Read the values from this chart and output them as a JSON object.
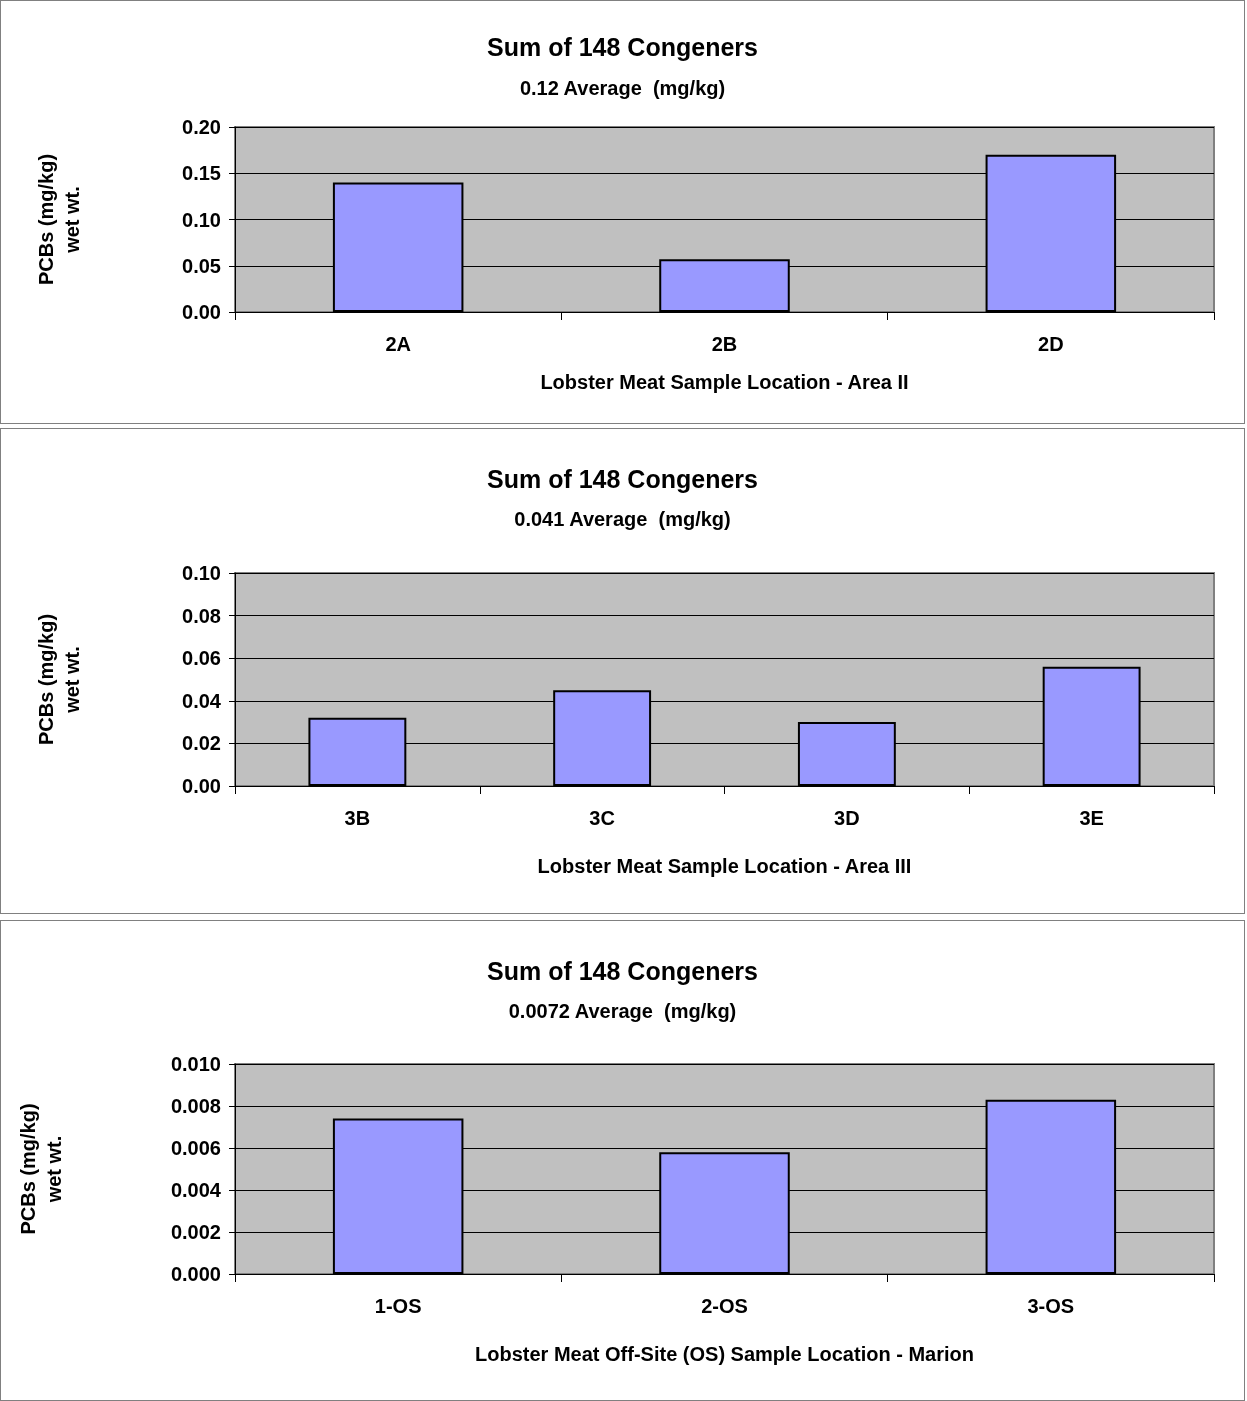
{
  "chart_data": [
    {
      "type": "bar",
      "title": "Sum of 148 Congeners",
      "subtitle": "0.12 Average  (mg/kg)",
      "xlabel": "Lobster Meat Sample Location - Area II",
      "ylabel": "PCBs (mg/kg)\nwet wt.",
      "categories": [
        "2A",
        "2B",
        "2D"
      ],
      "values": [
        0.14,
        0.057,
        0.17
      ],
      "color": "#9999ff",
      "ylim": [
        0,
        0.2
      ],
      "yticks": [
        {
          "value": 0,
          "label": "0.00"
        },
        {
          "value": 0.05,
          "label": "0.05"
        },
        {
          "value": 0.1,
          "label": "0.10"
        },
        {
          "value": 0.15,
          "label": "0.15"
        },
        {
          "value": 0.2,
          "label": "0.20"
        }
      ],
      "grid": "y"
    },
    {
      "type": "bar",
      "title": "Sum of 148 Congeners",
      "subtitle": "0.041 Average  (mg/kg)",
      "xlabel": "Lobster Meat Sample Location - Area III",
      "ylabel": "PCBs (mg/kg)\nwet wt.",
      "categories": [
        "3B",
        "3C",
        "3D",
        "3E"
      ],
      "values": [
        0.032,
        0.045,
        0.03,
        0.056
      ],
      "color": "#9999ff",
      "ylim": [
        0,
        0.1
      ],
      "yticks": [
        {
          "value": 0,
          "label": "0.00"
        },
        {
          "value": 0.02,
          "label": "0.02"
        },
        {
          "value": 0.04,
          "label": "0.04"
        },
        {
          "value": 0.06,
          "label": "0.06"
        },
        {
          "value": 0.08,
          "label": "0.08"
        },
        {
          "value": 0.1,
          "label": "0.10"
        }
      ],
      "grid": "y"
    },
    {
      "type": "bar",
      "title": "Sum of 148 Congeners",
      "subtitle": "0.0072 Average  (mg/kg)",
      "xlabel": "Lobster Meat Off-Site (OS) Sample Location - Marion",
      "ylabel": "PCBs (mg/kg)\nwet wt.",
      "categories": [
        "1-OS",
        "2-OS",
        "3-OS"
      ],
      "values": [
        0.0074,
        0.0058,
        0.0083
      ],
      "color": "#9999ff",
      "ylim": [
        0,
        0.01
      ],
      "yticks": [
        {
          "value": 0,
          "label": "0.000"
        },
        {
          "value": 0.002,
          "label": "0.002"
        },
        {
          "value": 0.004,
          "label": "0.004"
        },
        {
          "value": 0.006,
          "label": "0.006"
        },
        {
          "value": 0.008,
          "label": "0.008"
        },
        {
          "value": 0.01,
          "label": "0.010"
        }
      ],
      "grid": "y"
    }
  ]
}
